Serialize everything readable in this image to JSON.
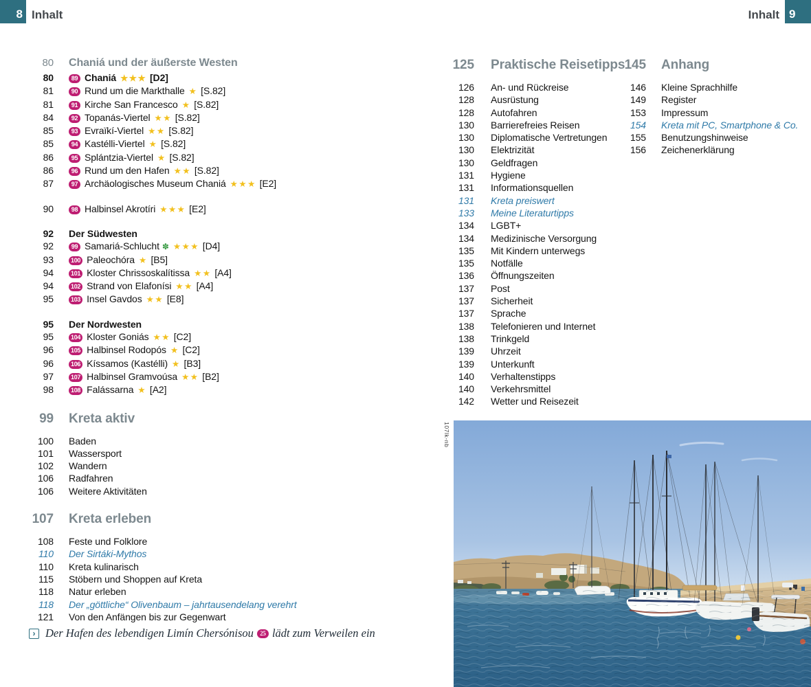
{
  "page_header": {
    "left_page_number": "8",
    "left_title": "Inhalt",
    "right_page_number": "9",
    "right_title": "Inhalt"
  },
  "colors": {
    "corner_teal": "#2e6f80",
    "badge_magenta": "#be1e72",
    "star_gold": "#f2c01e",
    "special_entry_blue": "#2f7aa8",
    "heading_gray": "#7d898f",
    "nature_icon_green": "#3f9e49"
  },
  "icons": {
    "nature": "✽",
    "caption_arrow": "›"
  },
  "toc": {
    "left": [
      {
        "page": "80",
        "label": "Chaniá und der äußerste Westen",
        "style": "chapter"
      },
      {
        "page": "80",
        "badge": "89",
        "label": "Chaniá",
        "stars": 3,
        "ref": "[D2]",
        "bold": true
      },
      {
        "page": "81",
        "badge": "90",
        "label": "Rund um die Markthalle",
        "stars": 1,
        "ref": "[S.82]"
      },
      {
        "page": "81",
        "badge": "91",
        "label": "Kirche San Francesco",
        "stars": 1,
        "ref": "[S.82]"
      },
      {
        "page": "84",
        "badge": "92",
        "label": "Topanás-Viertel",
        "stars": 2,
        "ref": "[S.82]"
      },
      {
        "page": "85",
        "badge": "93",
        "label": "Evraïkí-Viertel",
        "stars": 2,
        "ref": "[S.82]"
      },
      {
        "page": "85",
        "badge": "94",
        "label": "Kastélli-Viertel",
        "stars": 1,
        "ref": "[S.82]"
      },
      {
        "page": "86",
        "badge": "95",
        "label": "Splántzia-Viertel",
        "stars": 1,
        "ref": "[S.82]"
      },
      {
        "page": "86",
        "badge": "96",
        "label": "Rund um den Hafen",
        "stars": 2,
        "ref": "[S.82]"
      },
      {
        "page": "87",
        "badge": "97",
        "label": "Archäologisches Museum Chaniá",
        "stars": 3,
        "ref": "[E2]"
      },
      {
        "page": "90",
        "badge": "98",
        "label": "Halbinsel Akrotíri",
        "stars": 3,
        "ref": "[E2]",
        "gap": "md"
      },
      {
        "page": "92",
        "label": "Der Südwesten",
        "style": "sub",
        "gap": "md"
      },
      {
        "page": "92",
        "badge": "99",
        "label": "Samariá-Schlucht",
        "icon": "nature",
        "stars": 3,
        "ref": "[D4]"
      },
      {
        "page": "93",
        "badge": "100",
        "label": "Paleochóra",
        "stars": 1,
        "ref": "[B5]"
      },
      {
        "page": "94",
        "badge": "101",
        "label": "Kloster Chrissoskalítissa",
        "stars": 2,
        "ref": "[A4]"
      },
      {
        "page": "94",
        "badge": "102",
        "label": "Strand von Elafonísi",
        "stars": 2,
        "ref": "[A4]"
      },
      {
        "page": "95",
        "badge": "103",
        "label": "Insel Gavdos",
        "stars": 2,
        "ref": "[E8]"
      },
      {
        "page": "95",
        "label": "Der Nordwesten",
        "style": "sub",
        "gap": "md"
      },
      {
        "page": "95",
        "badge": "104",
        "label": "Kloster Goniás",
        "stars": 2,
        "ref": "[C2]"
      },
      {
        "page": "96",
        "badge": "105",
        "label": "Halbinsel Rodopós",
        "stars": 1,
        "ref": "[C2]"
      },
      {
        "page": "96",
        "badge": "106",
        "label": "Kíssamos (Kastélli)",
        "stars": 1,
        "ref": "[B3]"
      },
      {
        "page": "97",
        "badge": "107",
        "label": "Halbinsel Gramvoúsa",
        "stars": 2,
        "ref": "[B2]"
      },
      {
        "page": "98",
        "badge": "108",
        "label": "Falássarna",
        "stars": 1,
        "ref": "[A2]"
      },
      {
        "page": "99",
        "label": "Kreta aktiv",
        "style": "part"
      },
      {
        "page": "100",
        "label": "Baden"
      },
      {
        "page": "101",
        "label": "Wassersport"
      },
      {
        "page": "102",
        "label": "Wandern"
      },
      {
        "page": "106",
        "label": "Radfahren"
      },
      {
        "page": "106",
        "label": "Weitere Aktivitäten"
      },
      {
        "page": "107",
        "label": "Kreta erleben",
        "style": "part"
      },
      {
        "page": "108",
        "label": "Feste und Folklore"
      },
      {
        "page": "110",
        "label": "Der Sirtáki-Mythos",
        "style": "italic"
      },
      {
        "page": "110",
        "label": "Kreta kulinarisch"
      },
      {
        "page": "115",
        "label": "Stöbern und Shoppen auf Kreta"
      },
      {
        "page": "118",
        "label": "Natur erleben"
      },
      {
        "page": "118",
        "label": "Der „göttliche“ Olivenbaum – jahrtausendelang verehrt",
        "style": "italic"
      },
      {
        "page": "121",
        "label": "Von den Anfängen bis zur Gegenwart"
      }
    ],
    "middle": [
      {
        "page": "125",
        "label": "Praktische Reisetipps",
        "style": "part"
      },
      {
        "page": "126",
        "label": "An- und Rückreise"
      },
      {
        "page": "128",
        "label": "Ausrüstung"
      },
      {
        "page": "128",
        "label": "Autofahren"
      },
      {
        "page": "130",
        "label": "Barrierefreies Reisen"
      },
      {
        "page": "130",
        "label": "Diplomatische Vertretungen"
      },
      {
        "page": "130",
        "label": "Elektrizität"
      },
      {
        "page": "130",
        "label": "Geldfragen"
      },
      {
        "page": "131",
        "label": "Hygiene"
      },
      {
        "page": "131",
        "label": "Informationsquellen"
      },
      {
        "page": "131",
        "label": "Kreta preiswert",
        "style": "italic"
      },
      {
        "page": "133",
        "label": "Meine Literaturtipps",
        "style": "italic"
      },
      {
        "page": "134",
        "label": "LGBT+"
      },
      {
        "page": "134",
        "label": "Medizinische Versorgung"
      },
      {
        "page": "135",
        "label": "Mit Kindern unterwegs"
      },
      {
        "page": "135",
        "label": "Notfälle"
      },
      {
        "page": "136",
        "label": "Öffnungszeiten"
      },
      {
        "page": "137",
        "label": "Post"
      },
      {
        "page": "137",
        "label": "Sicherheit"
      },
      {
        "page": "137",
        "label": "Sprache"
      },
      {
        "page": "138",
        "label": "Telefonieren und Internet"
      },
      {
        "page": "138",
        "label": "Trinkgeld"
      },
      {
        "page": "139",
        "label": "Uhrzeit"
      },
      {
        "page": "139",
        "label": "Unterkunft"
      },
      {
        "page": "140",
        "label": "Verhaltenstipps"
      },
      {
        "page": "140",
        "label": "Verkehrsmittel"
      },
      {
        "page": "142",
        "label": "Wetter und Reisezeit"
      }
    ],
    "right": [
      {
        "page": "145",
        "label": "Anhang",
        "style": "part"
      },
      {
        "page": "146",
        "label": "Kleine Sprachhilfe"
      },
      {
        "page": "149",
        "label": "Register"
      },
      {
        "page": "153",
        "label": "Impressum"
      },
      {
        "page": "154",
        "label": "Kreta mit PC, Smartphone & Co.",
        "style": "italic"
      },
      {
        "page": "155",
        "label": "Benutzungshinweise"
      },
      {
        "page": "156",
        "label": "Zeichenerklärung"
      }
    ]
  },
  "caption": {
    "text_before": "Der Hafen des lebendigen Limín Chersónisou",
    "badge": "25",
    "text_after": "lädt zum Verweilen ein"
  },
  "photo": {
    "credit": "107lk-nb",
    "description": "Hafen mit Segelbooten an einer Steinmole"
  }
}
